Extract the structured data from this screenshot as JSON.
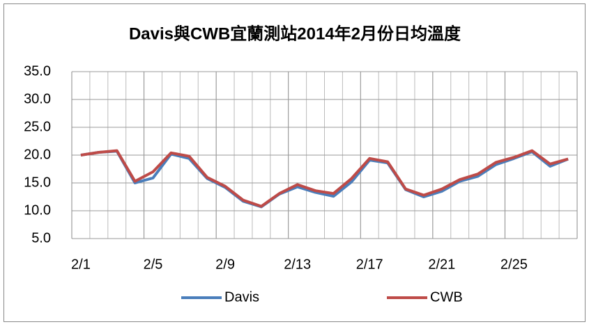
{
  "chart_data": {
    "type": "line",
    "title": "Davis與CWB宜蘭測站2014年2月份日均溫度",
    "categories": [
      "2/1",
      null,
      null,
      null,
      "2/5",
      null,
      null,
      null,
      "2/9",
      null,
      null,
      null,
      "2/13",
      null,
      null,
      null,
      "2/17",
      null,
      null,
      null,
      "2/21",
      null,
      null,
      null,
      "2/25",
      null,
      null,
      null
    ],
    "series": [
      {
        "name": "Davis",
        "color": "#4a7ebb",
        "values": [
          20.0,
          20.5,
          20.7,
          15.0,
          15.9,
          20.2,
          19.4,
          15.8,
          14.2,
          11.7,
          10.7,
          13.0,
          14.3,
          13.3,
          12.6,
          15.2,
          19.1,
          18.6,
          13.8,
          12.5,
          13.5,
          15.3,
          16.2,
          18.3,
          19.4,
          20.6,
          18.0,
          19.3
        ]
      },
      {
        "name": "CWB",
        "color": "#be4b48",
        "values": [
          20.0,
          20.5,
          20.8,
          15.3,
          17.0,
          20.4,
          19.8,
          16.0,
          14.4,
          11.9,
          10.8,
          13.1,
          14.7,
          13.6,
          13.1,
          15.8,
          19.4,
          18.8,
          13.9,
          12.8,
          13.9,
          15.6,
          16.6,
          18.7,
          19.6,
          20.8,
          18.4,
          19.3
        ]
      }
    ],
    "ylim": [
      5,
      35
    ],
    "yticks": [
      {
        "value": 5,
        "label": "5.0"
      },
      {
        "value": 10,
        "label": "10.0"
      },
      {
        "value": 15,
        "label": "15.0"
      },
      {
        "value": 20,
        "label": "20.0"
      },
      {
        "value": 25,
        "label": "25.0"
      },
      {
        "value": 30,
        "label": "30.0"
      },
      {
        "value": 35,
        "label": "35.0"
      }
    ],
    "grid": true,
    "legend": "bottom"
  }
}
